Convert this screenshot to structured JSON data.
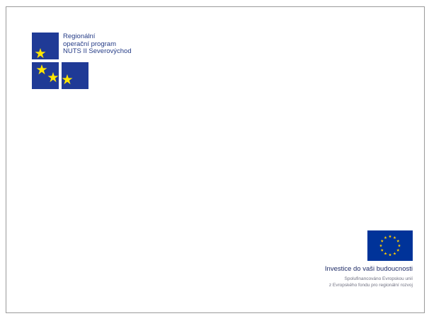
{
  "logo": {
    "lines": [
      "Regionální",
      "operační program",
      "NUTS II Severovýchod"
    ],
    "square_color": "#1f3a96",
    "star_color": "#ffe600",
    "icon": "three-star-squares-icon"
  },
  "eu": {
    "slogan": "Investice do vaši budoucnosti",
    "sub_line_1": "Spolufinancováno Evropskou unií",
    "sub_line_2": "z Evropského fondu pro regionální rozvoj",
    "flag_color": "#003399",
    "star_color": "#ffcc00",
    "icon": "eu-flag-icon"
  }
}
